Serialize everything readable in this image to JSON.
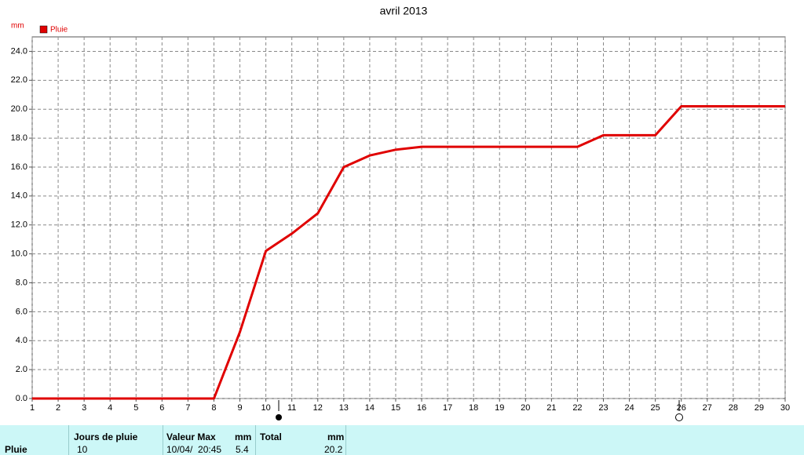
{
  "chart_data": {
    "type": "line",
    "title": "avril 2013",
    "y_unit": "mm",
    "x": [
      1,
      2,
      3,
      4,
      5,
      6,
      7,
      8,
      9,
      10,
      11,
      12,
      13,
      14,
      15,
      16,
      17,
      18,
      19,
      20,
      21,
      22,
      23,
      24,
      25,
      26,
      27,
      28,
      29,
      30
    ],
    "series": [
      {
        "name": "Pluie",
        "color": "#e00000",
        "values": [
          0,
          0,
          0,
          0,
          0,
          0,
          0,
          0,
          4.6,
          10.2,
          11.4,
          12.8,
          16.0,
          16.8,
          17.2,
          17.4,
          17.4,
          17.4,
          17.4,
          17.4,
          17.4,
          17.4,
          18.2,
          18.2,
          18.2,
          20.2,
          20.2,
          20.2,
          20.2,
          20.2
        ]
      }
    ],
    "xlim": [
      1,
      30
    ],
    "xticks": [
      1,
      2,
      3,
      4,
      5,
      6,
      7,
      8,
      9,
      10,
      11,
      12,
      13,
      14,
      15,
      16,
      17,
      18,
      19,
      20,
      21,
      22,
      23,
      24,
      25,
      26,
      27,
      28,
      29,
      30
    ],
    "ylim": [
      0,
      25
    ],
    "yticks": [
      {
        "value": 0,
        "label": "0.0"
      },
      {
        "value": 2,
        "label": "2.0"
      },
      {
        "value": 4,
        "label": "4.0"
      },
      {
        "value": 6,
        "label": "6.0"
      },
      {
        "value": 8,
        "label": "8.0"
      },
      {
        "value": 10,
        "label": "10.0"
      },
      {
        "value": 12,
        "label": "12.0"
      },
      {
        "value": 14,
        "label": "14.0"
      },
      {
        "value": 16,
        "label": "16.0"
      },
      {
        "value": 18,
        "label": "18.0"
      },
      {
        "value": 20,
        "label": "20.0"
      },
      {
        "value": 22,
        "label": "22.0"
      },
      {
        "value": 24,
        "label": "24.0"
      }
    ],
    "grid": true
  },
  "table": {
    "row_label": "Pluie",
    "columns": [
      {
        "header": "Jours de pluie",
        "value": "10"
      },
      {
        "header": "Valeur Max",
        "unit": "mm",
        "date": "10/04/  20:45",
        "value": "5.4"
      },
      {
        "header": "Total",
        "unit": "mm",
        "value": "20.2"
      }
    ]
  }
}
